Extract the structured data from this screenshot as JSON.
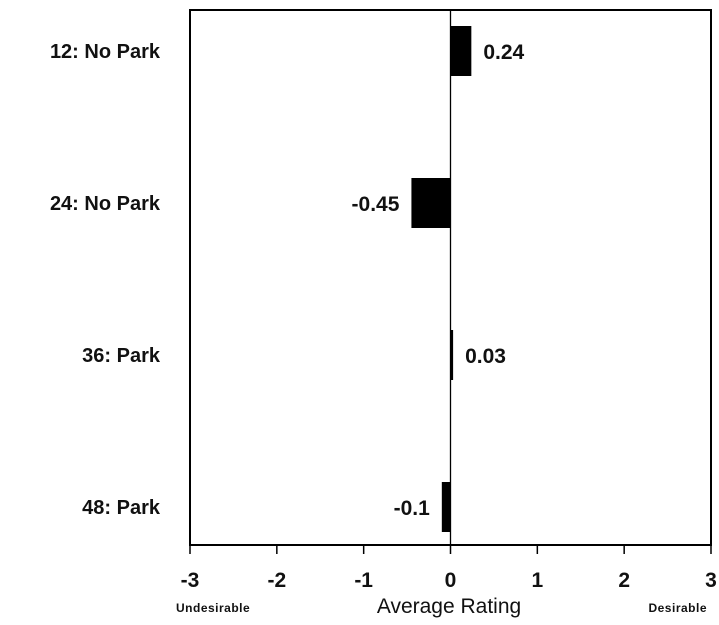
{
  "chart_data": {
    "type": "bar",
    "orientation": "horizontal",
    "categories": [
      "12: No Park",
      "24: No Park",
      "36: Park",
      "48: Park"
    ],
    "values": [
      0.24,
      -0.45,
      0.03,
      -0.1
    ],
    "value_labels": [
      "0.24",
      "-0.45",
      "0.03",
      "-0.1"
    ],
    "xlabel": "Average Rating",
    "xlabel_left": "Undesirable",
    "xlabel_right": "Desirable",
    "xlim": [
      -3,
      3
    ],
    "xticks": [
      -3,
      -2,
      -1,
      0,
      1,
      2,
      3
    ],
    "xtick_labels": [
      "-3",
      "-2",
      "-1",
      "0",
      "1",
      "2",
      "3"
    ],
    "grid": false,
    "bar_color": "#000000"
  }
}
